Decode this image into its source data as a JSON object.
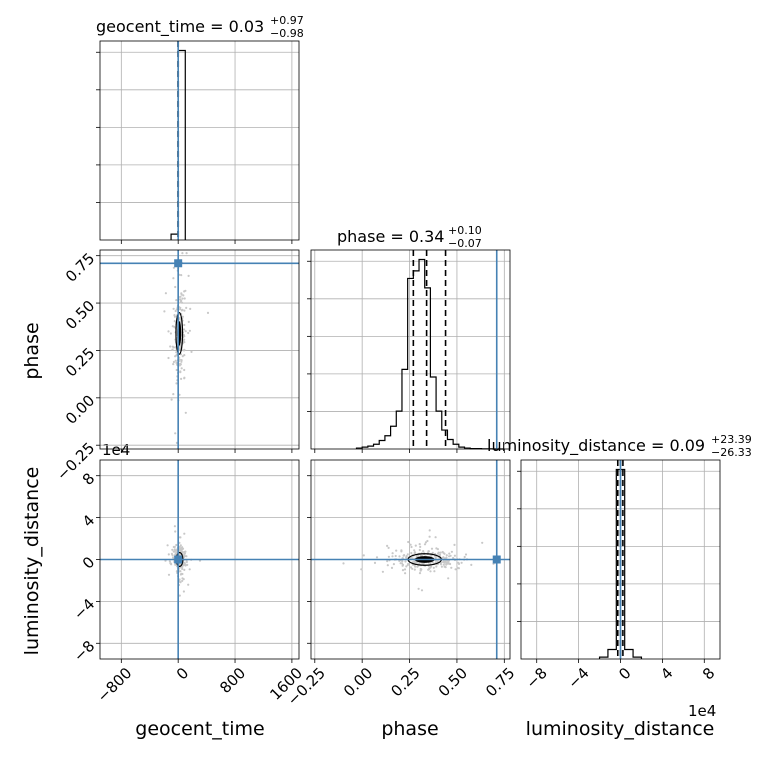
{
  "figure": {
    "type": "corner plot"
  },
  "titles": {
    "geocent_time": {
      "prefix": "geocent_time = ",
      "value": "0.03",
      "plus": "+0.97",
      "minus": "−0.98"
    },
    "phase": {
      "prefix": "phase = ",
      "value": "0.34",
      "plus": "+0.10",
      "minus": "−0.07"
    },
    "luminosity_distance": {
      "prefix": "luminosity_distance = ",
      "value": "0.09",
      "plus": "+23.39",
      "minus": "−26.33"
    }
  },
  "labels": {
    "geocent_time": "geocent_time",
    "phase": "phase",
    "luminosity_distance": "luminosity_distance",
    "offset_ld_y": "1e4",
    "offset_ld_x": "1e4"
  },
  "colors": {
    "truth": "#4682b4",
    "hist": "#000000",
    "samples": "#c8c8c8",
    "grid": "#b0b0b0"
  },
  "chart_data": {
    "type": "corner",
    "parameters": [
      "geocent_time",
      "phase",
      "luminosity_distance"
    ],
    "truths": {
      "geocent_time": 0,
      "phase": 0.71,
      "luminosity_distance": 0
    },
    "axes": {
      "geocent_time": {
        "range": [
          -1100,
          1700
        ],
        "ticks": [
          -800,
          0,
          800,
          1600
        ],
        "tick_labels": [
          "−800",
          "0",
          "800",
          "1600"
        ]
      },
      "phase": {
        "range": [
          -0.27,
          0.78
        ],
        "ticks": [
          -0.25,
          0.0,
          0.25,
          0.5,
          0.75
        ],
        "tick_labels": [
          "−0.25",
          "0.00",
          "0.25",
          "0.50",
          "0.75"
        ]
      },
      "luminosity_distance": {
        "range": [
          -9.5,
          9.5
        ],
        "ticks": [
          -8,
          -4,
          0,
          4,
          8
        ],
        "tick_labels": [
          "−8",
          "−4",
          "0",
          "4",
          "8"
        ],
        "scale_factor": "1e4"
      }
    },
    "histograms": {
      "geocent_time": {
        "bins": [
          -100,
          0,
          100
        ],
        "counts": [
          0.03,
          0.97
        ],
        "quantiles": [
          -0.98,
          0.03,
          1.0
        ]
      },
      "phase": {
        "bins": [
          -0.03,
          0.0,
          0.03,
          0.06,
          0.09,
          0.12,
          0.15,
          0.18,
          0.21,
          0.24,
          0.27,
          0.3,
          0.33,
          0.36,
          0.39,
          0.42,
          0.45,
          0.48,
          0.51,
          0.54,
          0.57,
          0.6,
          0.63,
          0.66,
          0.69,
          0.72,
          0.75
        ],
        "counts": [
          0.005,
          0.01,
          0.015,
          0.025,
          0.045,
          0.07,
          0.12,
          0.2,
          0.42,
          0.9,
          0.94,
          1.0,
          0.85,
          0.38,
          0.2,
          0.1,
          0.05,
          0.025,
          0.01,
          0.005,
          0.002,
          0.002,
          0.001,
          0.001,
          0.0,
          0.0
        ],
        "quantiles": [
          0.27,
          0.34,
          0.44
        ]
      },
      "luminosity_distance": {
        "bins": [
          -2.0,
          -1.2,
          -0.4,
          0.4,
          1.2,
          2.0
        ],
        "counts": [
          0.01,
          0.05,
          1.0,
          0.05,
          0.01
        ],
        "quantiles": [
          -0.26,
          0.0,
          0.23
        ]
      }
    },
    "joint": {
      "phase_vs_geocent_time": {
        "center": [
          15,
          0.34
        ],
        "spread": [
          40,
          0.1
        ]
      },
      "luminosity_distance_vs_geocent_time": {
        "center": [
          20,
          0.0
        ],
        "spread": [
          35,
          0.6
        ]
      },
      "luminosity_distance_vs_phase": {
        "center": [
          0.33,
          0.0
        ],
        "spread": [
          0.08,
          0.5
        ]
      }
    },
    "grid": true
  }
}
